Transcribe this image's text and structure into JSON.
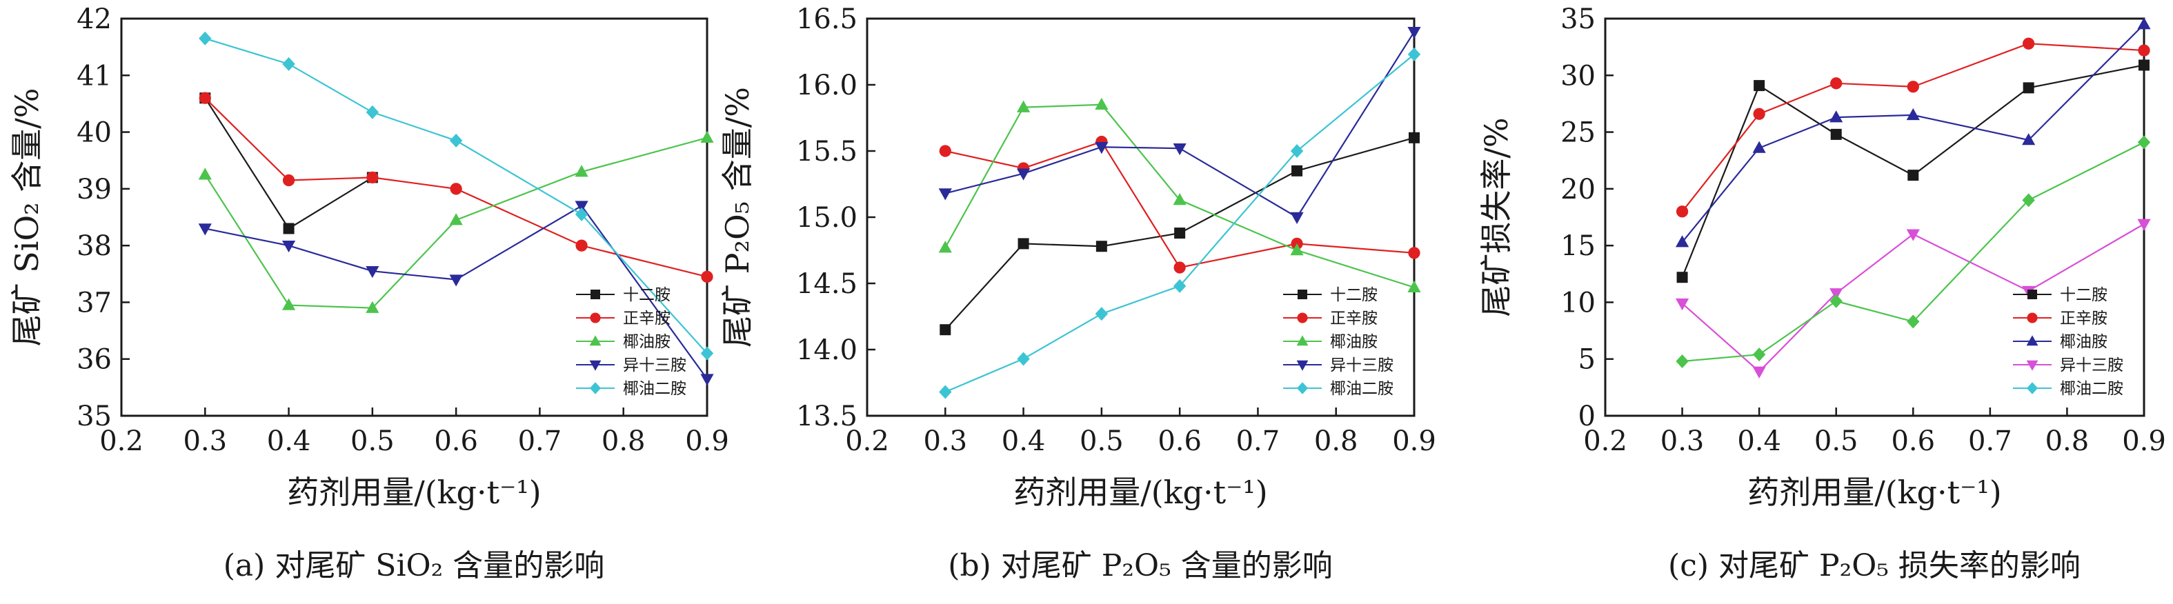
{
  "chart_data": [
    {
      "type": "line",
      "panel_caption": "(a) 对尾矿 SiO₂ 含量的影响",
      "xlabel": "药剂用量/(kg·t⁻¹)",
      "ylabel": "尾矿 SiO₂ 含量/%",
      "xlim": [
        0.2,
        0.9
      ],
      "ylim": [
        35,
        42
      ],
      "xticks": [
        "0.2",
        "0.3",
        "0.4",
        "0.5",
        "0.6",
        "0.7",
        "0.8",
        "0.9"
      ],
      "yticks": [
        "35",
        "36",
        "37",
        "38",
        "39",
        "40",
        "41",
        "42"
      ],
      "grid": false,
      "legend_position": "bottom-right",
      "x": [
        0.3,
        0.4,
        0.5,
        0.6,
        0.75,
        0.9
      ],
      "series": [
        {
          "name": "十二胺",
          "color": "#1a1a1a",
          "marker": "square",
          "values": [
            40.6,
            38.3,
            39.2,
            null,
            null,
            null
          ]
        },
        {
          "name": "正辛胺",
          "color": "#e02020",
          "marker": "circle",
          "values": [
            40.6,
            39.15,
            39.2,
            39.0,
            38.0,
            37.45
          ]
        },
        {
          "name": "椰油胺",
          "color": "#4cc44c",
          "marker": "triangle-up",
          "values": [
            39.25,
            36.95,
            36.9,
            38.45,
            39.3,
            39.9
          ]
        },
        {
          "name": "异十三胺",
          "color": "#2a2a9a",
          "marker": "triangle-down",
          "values": [
            38.3,
            38.0,
            37.55,
            37.4,
            38.7,
            35.65
          ]
        },
        {
          "name": "椰油二胺",
          "color": "#3cc4d4",
          "marker": "diamond",
          "values": [
            41.65,
            41.2,
            40.35,
            39.85,
            38.55,
            36.1
          ]
        }
      ]
    },
    {
      "type": "line",
      "panel_caption": "(b) 对尾矿 P₂O₅ 含量的影响",
      "xlabel": "药剂用量/(kg·t⁻¹)",
      "ylabel": "尾矿 P₂O₅ 含量/%",
      "xlim": [
        0.2,
        0.9
      ],
      "ylim": [
        13.5,
        16.5
      ],
      "xticks": [
        "0.2",
        "0.3",
        "0.4",
        "0.5",
        "0.6",
        "0.7",
        "0.8",
        "0.9"
      ],
      "yticks": [
        "13.5",
        "14.0",
        "14.5",
        "15.0",
        "15.5",
        "16.0",
        "16.5"
      ],
      "grid": false,
      "legend_position": "bottom-right",
      "x": [
        0.3,
        0.4,
        0.5,
        0.6,
        0.75,
        0.9
      ],
      "series": [
        {
          "name": "十二胺",
          "color": "#1a1a1a",
          "marker": "square",
          "values": [
            14.15,
            14.8,
            14.78,
            14.88,
            15.35,
            15.6
          ]
        },
        {
          "name": "正辛胺",
          "color": "#e02020",
          "marker": "circle",
          "values": [
            15.5,
            15.37,
            15.57,
            14.62,
            14.8,
            14.73
          ]
        },
        {
          "name": "椰油胺",
          "color": "#4cc44c",
          "marker": "triangle-up",
          "values": [
            14.77,
            15.83,
            15.85,
            15.13,
            14.75,
            14.47
          ]
        },
        {
          "name": "异十三胺",
          "color": "#2a2a9a",
          "marker": "triangle-down",
          "values": [
            15.18,
            15.33,
            15.53,
            15.52,
            15.0,
            16.4
          ]
        },
        {
          "name": "椰油二胺",
          "color": "#3cc4d4",
          "marker": "diamond",
          "values": [
            13.68,
            13.93,
            14.27,
            14.48,
            15.5,
            16.23
          ]
        }
      ]
    },
    {
      "type": "line",
      "panel_caption": "(c) 对尾矿 P₂O₅ 损失率的影响",
      "xlabel": "药剂用量/(kg·t⁻¹)",
      "ylabel": "尾矿损失率/%",
      "xlim": [
        0.2,
        0.9
      ],
      "ylim": [
        0,
        35
      ],
      "xticks": [
        "0.2",
        "0.3",
        "0.4",
        "0.5",
        "0.6",
        "0.7",
        "0.8",
        "0.9"
      ],
      "yticks": [
        "0",
        "5",
        "10",
        "15",
        "20",
        "25",
        "30",
        "35"
      ],
      "grid": false,
      "legend_position": "bottom-right",
      "x": [
        0.3,
        0.4,
        0.5,
        0.6,
        0.75,
        0.9
      ],
      "series": [
        {
          "name": "十二胺",
          "color": "#1a1a1a",
          "marker": "square",
          "values": [
            12.2,
            29.1,
            24.8,
            21.2,
            28.9,
            30.9
          ]
        },
        {
          "name": "正辛胺",
          "color": "#e02020",
          "marker": "circle",
          "values": [
            18.0,
            26.6,
            29.3,
            29.0,
            32.8,
            32.2
          ]
        },
        {
          "name": "椰油胺",
          "color": "#2a2a9a",
          "marker": "triangle-up",
          "values": [
            15.3,
            23.6,
            26.3,
            26.5,
            24.3,
            34.5
          ]
        },
        {
          "name": "异十三胺",
          "color": "#d84fd8",
          "marker": "triangle-down",
          "values": [
            9.9,
            3.9,
            10.8,
            16.0,
            11.0,
            16.9
          ]
        },
        {
          "name": "椰油二胺",
          "color": "#3cc4d4",
          "marker": "diamond",
          "values": [
            null,
            null,
            null,
            null,
            null,
            null
          ]
        },
        {
          "name": "",
          "color": "#4cc44c",
          "marker": "diamond",
          "values": [
            4.8,
            5.4,
            10.1,
            8.3,
            19.0,
            24.1
          ]
        }
      ]
    }
  ]
}
